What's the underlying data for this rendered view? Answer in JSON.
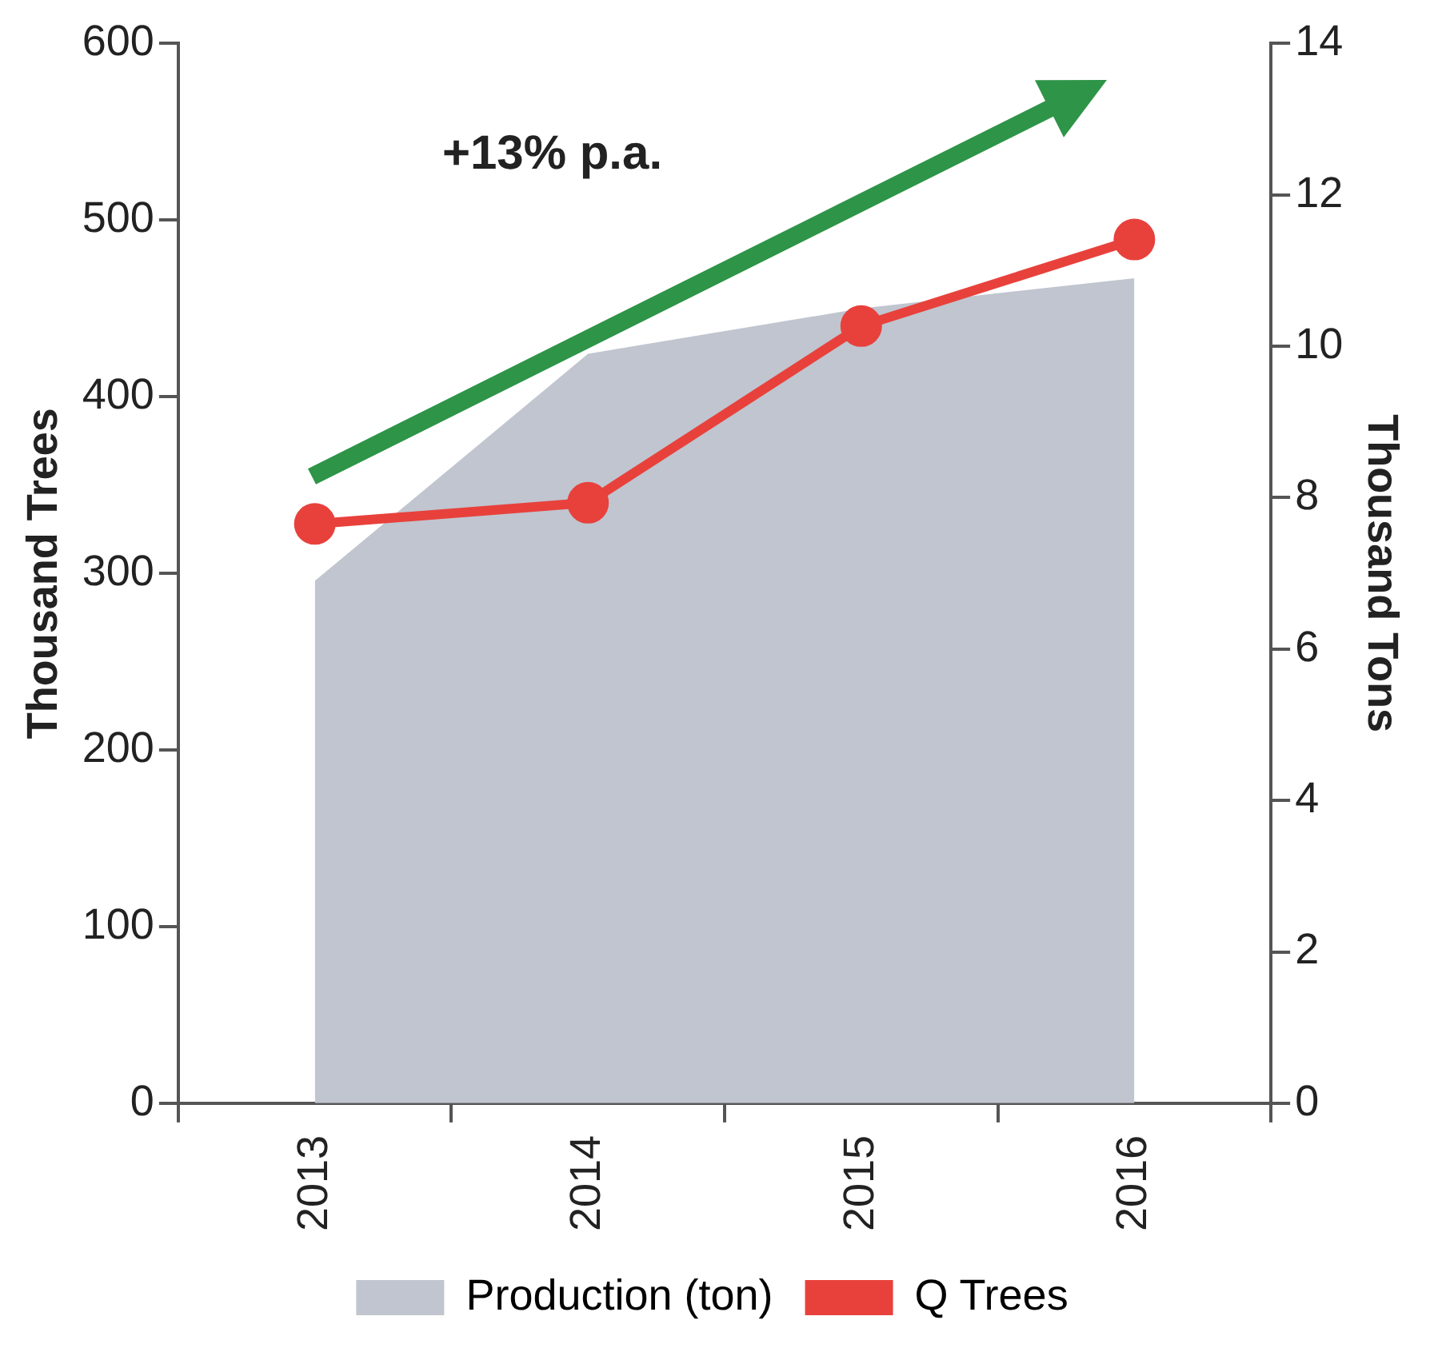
{
  "chart_data": {
    "type": "line",
    "categories": [
      "2013",
      "2014",
      "2015",
      "2016"
    ],
    "series": [
      {
        "name": "Production (ton)",
        "type": "area",
        "axis": "y2",
        "color": "#c0c5cf",
        "values": [
          6.9,
          9.9,
          10.5,
          10.9
        ]
      },
      {
        "name": "Q Trees",
        "marker": "circle",
        "color": "#e8413c",
        "values": [
          328,
          340,
          440,
          489
        ]
      }
    ],
    "ylabel": "Thousand Trees",
    "y2label": "Thousand Tons",
    "ylim": [
      0,
      600
    ],
    "yticks": [
      0,
      100,
      200,
      300,
      400,
      500,
      600
    ],
    "y2lim": [
      0,
      14
    ],
    "y2ticks": [
      0,
      2,
      4,
      6,
      8,
      10,
      12,
      14
    ],
    "annotations": [
      "+13% p.a."
    ],
    "grid": false,
    "legend": "bottom"
  }
}
